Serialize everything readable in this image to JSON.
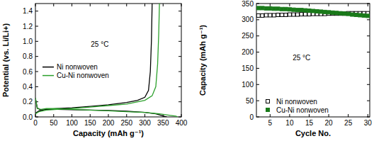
{
  "chart_data": [
    {
      "type": "line",
      "x_label": "Capacity (mAh g⁻¹)",
      "y_label": "Potential (vs. Li/Li+)",
      "annotation": "25 °C",
      "xlim": [
        0,
        400
      ],
      "xticks": [
        0,
        50,
        100,
        150,
        200,
        250,
        300,
        350,
        400
      ],
      "ylim": [
        0,
        1.5
      ],
      "yticks": [
        {
          "value": 0,
          "label": "0.0"
        },
        {
          "value": 0.2,
          "label": "0.2"
        },
        {
          "value": 0.4,
          "label": "0.4"
        },
        {
          "value": 0.6,
          "label": "0.6"
        },
        {
          "value": 0.8,
          "label": "0.8"
        },
        {
          "value": 1.0,
          "label": "1.0"
        },
        {
          "value": 1.2,
          "label": "1.2"
        },
        {
          "value": 1.4,
          "label": "1.4"
        }
      ],
      "legend": "center",
      "series": [
        {
          "name": "Ni nonwoven",
          "color": "#000000",
          "line_style": "solid",
          "x": [
            0,
            5,
            15,
            30,
            60,
            100,
            150,
            200,
            250,
            300,
            330,
            345,
            355,
            360,
            null,
            0,
            10,
            30,
            60,
            100,
            150,
            200,
            250,
            280,
            300,
            310,
            315,
            318,
            320
          ],
          "values": [
            0.25,
            0.12,
            0.09,
            0.1,
            0.1,
            0.095,
            0.09,
            0.085,
            0.075,
            0.06,
            0.04,
            0.02,
            0.005,
            0,
            null,
            0.05,
            0.08,
            0.1,
            0.11,
            0.12,
            0.14,
            0.16,
            0.19,
            0.22,
            0.26,
            0.35,
            0.6,
            1.0,
            1.5
          ]
        },
        {
          "name": "Cu-Ni nonwoven",
          "color": "#2ca02c",
          "line_style": "solid",
          "x": [
            0,
            5,
            15,
            30,
            60,
            100,
            150,
            200,
            250,
            300,
            340,
            370,
            385,
            390,
            null,
            0,
            10,
            30,
            60,
            100,
            150,
            200,
            250,
            300,
            320,
            330,
            335,
            338,
            340
          ],
          "values": [
            0.25,
            0.11,
            0.1,
            0.11,
            0.11,
            0.1,
            0.09,
            0.08,
            0.07,
            0.06,
            0.04,
            0.02,
            0.01,
            0,
            null,
            0.04,
            0.07,
            0.09,
            0.1,
            0.11,
            0.13,
            0.15,
            0.17,
            0.22,
            0.28,
            0.4,
            0.7,
            1.1,
            1.5
          ]
        }
      ]
    },
    {
      "type": "scatter",
      "x_label": "Cycle No.",
      "y_label": "Capacity (mAh g⁻¹)",
      "annotation": "25 °C",
      "xlim": [
        1.5,
        30.5
      ],
      "xticks": [
        5,
        10,
        15,
        20,
        25,
        30
      ],
      "ylim": [
        0,
        350
      ],
      "yticks": [
        0,
        50,
        100,
        150,
        200,
        250,
        300,
        350
      ],
      "legend": "lower left",
      "x": [
        2,
        3,
        4,
        5,
        6,
        7,
        8,
        9,
        10,
        11,
        12,
        13,
        14,
        15,
        16,
        17,
        18,
        19,
        20,
        21,
        22,
        23,
        24,
        25,
        26,
        27,
        28,
        29,
        30
      ],
      "series": [
        {
          "name": "Ni nonwoven",
          "color": "#000000",
          "marker": "square-open",
          "values": [
            313,
            313,
            314,
            314,
            314,
            315,
            315,
            315,
            316,
            316,
            316,
            317,
            317,
            317,
            318,
            318,
            318,
            318,
            319,
            319,
            319,
            319,
            319,
            320,
            320,
            320,
            320,
            320,
            320
          ]
        },
        {
          "name": "Cu-Ni nonwoven",
          "color": "#1a7a1a",
          "marker": "square",
          "values": [
            336,
            336,
            335,
            335,
            334,
            334,
            333,
            333,
            332,
            331,
            330,
            330,
            329,
            328,
            327,
            326,
            325,
            324,
            323,
            322,
            321,
            320,
            319,
            318,
            316,
            315,
            314,
            313,
            312
          ]
        }
      ]
    }
  ]
}
